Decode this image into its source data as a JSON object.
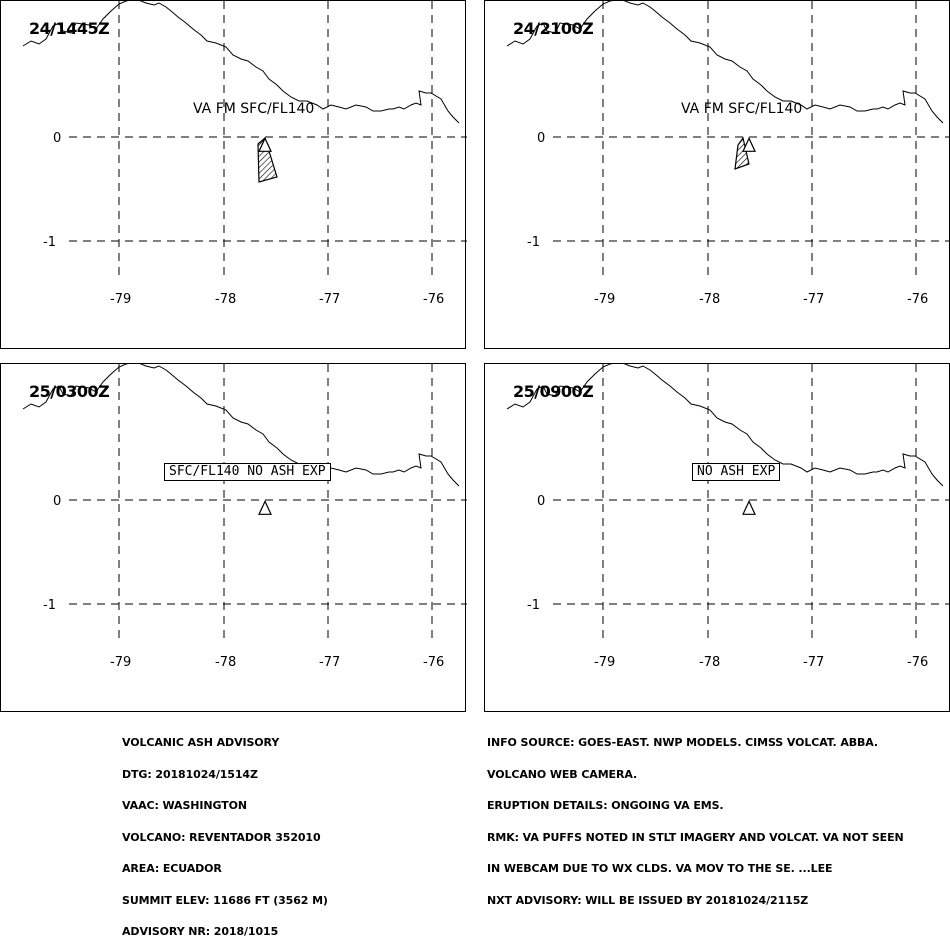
{
  "panels": [
    {
      "time": "24/1445Z",
      "label": "VA FM SFC/FL140",
      "label_boxed": false,
      "plume": "large"
    },
    {
      "time": "24/2100Z",
      "label": "VA FM SFC/FL140",
      "label_boxed": false,
      "plume": "medium"
    },
    {
      "time": "25/0300Z",
      "label": "SFC/FL140 NO ASH EXP",
      "label_boxed": true,
      "plume": "none"
    },
    {
      "time": "25/0900Z",
      "label": "NO ASH EXP",
      "label_boxed": true,
      "plume": "none"
    }
  ],
  "axes": {
    "lon_ticks": [
      "-79",
      "-78",
      "-77",
      "-76"
    ],
    "lat_ticks": [
      "0",
      "-1"
    ],
    "lon_range": [
      -79.5,
      -75.7
    ],
    "lat_range": [
      -1.7,
      1.3
    ],
    "grid": true,
    "grid_style": "dashed"
  },
  "volcano": {
    "name": "REVENTADOR",
    "lon": -77.6,
    "lat": -0.08,
    "marker": "triangle-icon"
  },
  "advisory_left": [
    "VOLCANIC ASH ADVISORY",
    "DTG: 20181024/1514Z",
    "VAAC: WASHINGTON",
    "VOLCANO: REVENTADOR 352010",
    "AREA: ECUADOR",
    "SUMMIT ELEV: 11686 FT (3562 M)",
    "ADVISORY NR: 2018/1015"
  ],
  "advisory_right": [
    "INFO SOURCE: GOES-EAST. NWP MODELS. CIMSS VOLCAT. ABBA.",
    "VOLCANO WEB CAMERA.",
    "ERUPTION DETAILS: ONGOING VA EMS.",
    "RMK: VA PUFFS NOTED IN STLT IMAGERY AND VOLCAT. VA NOT SEEN",
    "IN WEBCAM DUE TO WX CLDS. VA MOV TO THE SE. ...LEE",
    "NXT ADVISORY: WILL BE ISSUED BY 20181024/2115Z"
  ],
  "colors": {
    "ink": "#000000",
    "background": "#ffffff"
  }
}
